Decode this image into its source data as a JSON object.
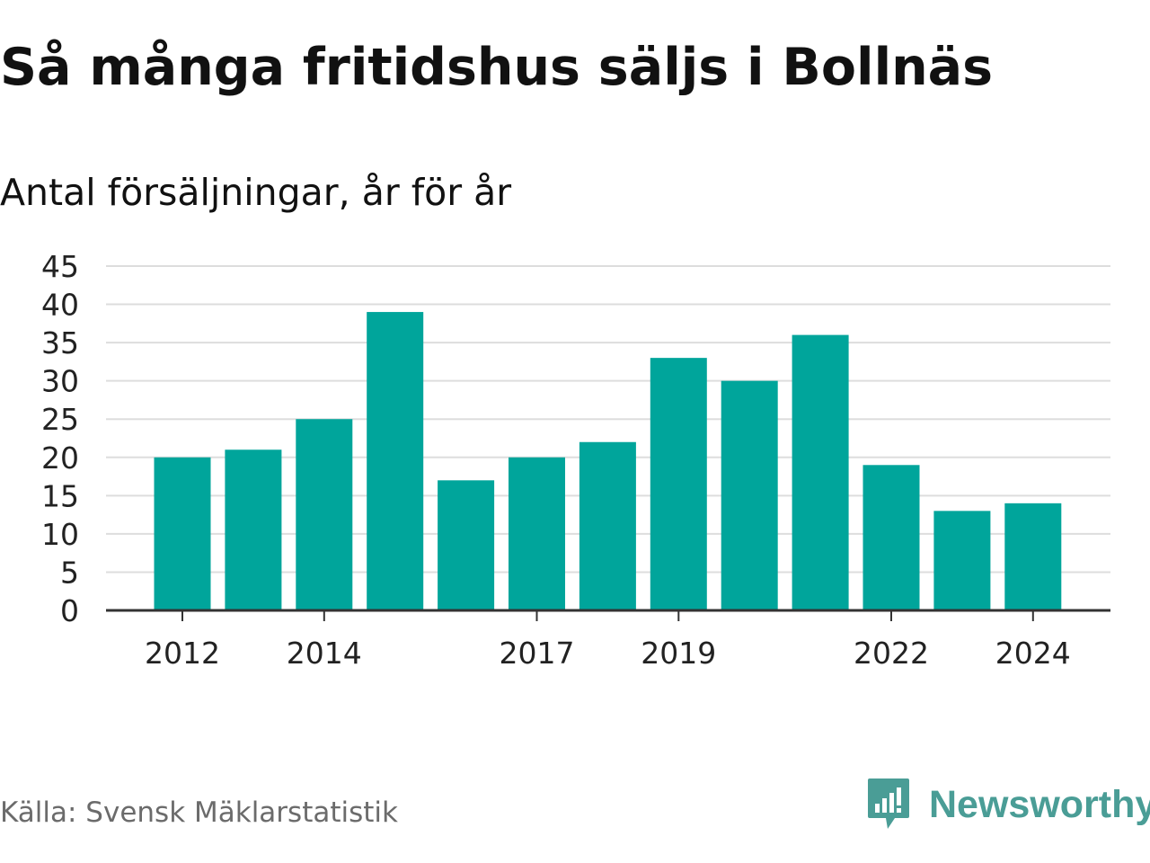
{
  "header": {
    "title": "Så många fritidshus säljs i Bollnäs",
    "subtitle": "Antal försäljningar, år för år"
  },
  "footer": {
    "source": "Källa: Svensk Mäklarstatistik",
    "brand": "Newsworthy",
    "brand_icon": "newsworthy-logo-icon"
  },
  "colors": {
    "bar": "#00a59b",
    "grid": "#dddddd",
    "axis": "#333333",
    "brand": "#4a9d96"
  },
  "chart_data": {
    "type": "bar",
    "categories": [
      "2012",
      "2013",
      "2014",
      "2015",
      "2016",
      "2017",
      "2018",
      "2019",
      "2020",
      "2021",
      "2022",
      "2023",
      "2024"
    ],
    "values": [
      20,
      21,
      25,
      39,
      17,
      20,
      22,
      33,
      30,
      36,
      19,
      13,
      14
    ],
    "x_tick_labels": [
      "2012",
      "2014",
      "2017",
      "2019",
      "2022",
      "2024"
    ],
    "y_ticks": [
      0,
      5,
      10,
      15,
      20,
      25,
      30,
      35,
      40,
      45
    ],
    "ylim": [
      0,
      45
    ],
    "grid": true,
    "legend": "none"
  }
}
